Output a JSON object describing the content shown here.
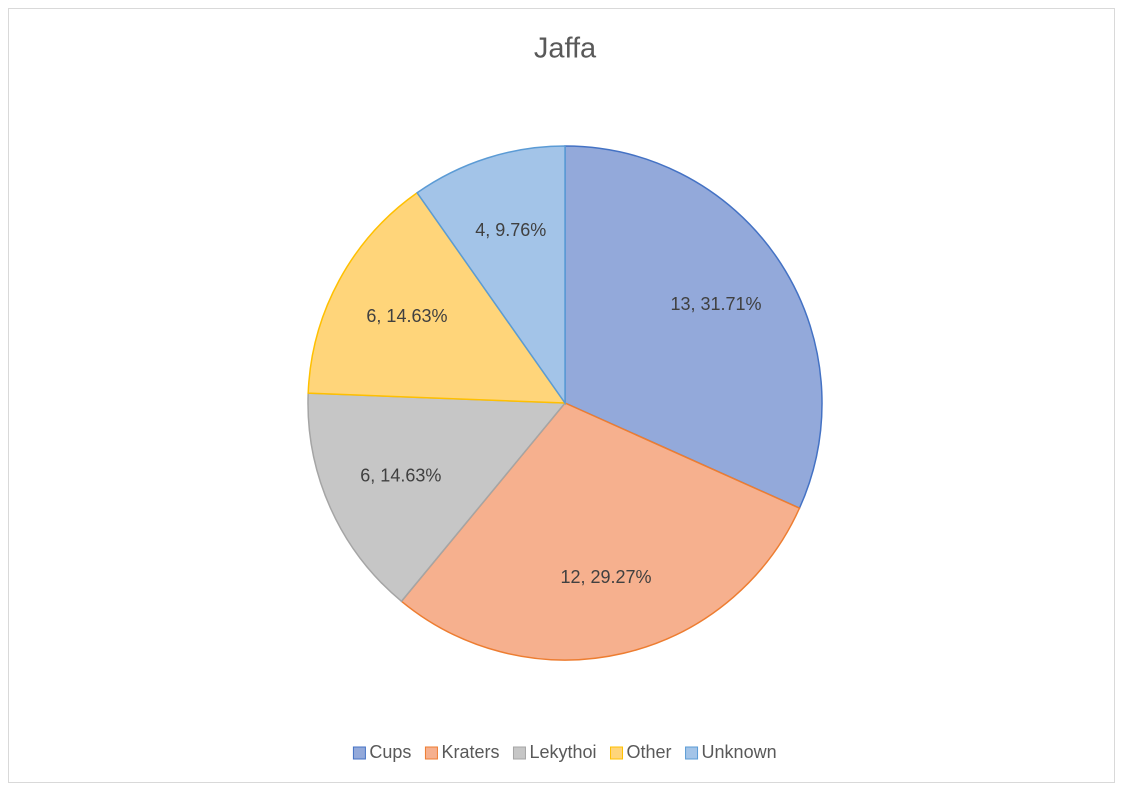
{
  "chart_data": {
    "type": "pie",
    "title": "Jaffa",
    "categories": [
      "Cups",
      "Kraters",
      "Lekythoi",
      "Other",
      "Unknown"
    ],
    "values": [
      13,
      12,
      6,
      6,
      4
    ],
    "value_labels": [
      "13, 31.71%",
      "12, 29.27%",
      "6, 14.63%",
      "6, 14.63%",
      "4, 9.76%"
    ],
    "colors": [
      "#93a9da",
      "#f6b08e",
      "#c6c6c6",
      "#ffd57a",
      "#a3c4e8"
    ],
    "edge_colors": [
      "#4472c4",
      "#ed7d31",
      "#a5a5a5",
      "#ffc000",
      "#5b9bd5"
    ],
    "legend": "bottom"
  }
}
